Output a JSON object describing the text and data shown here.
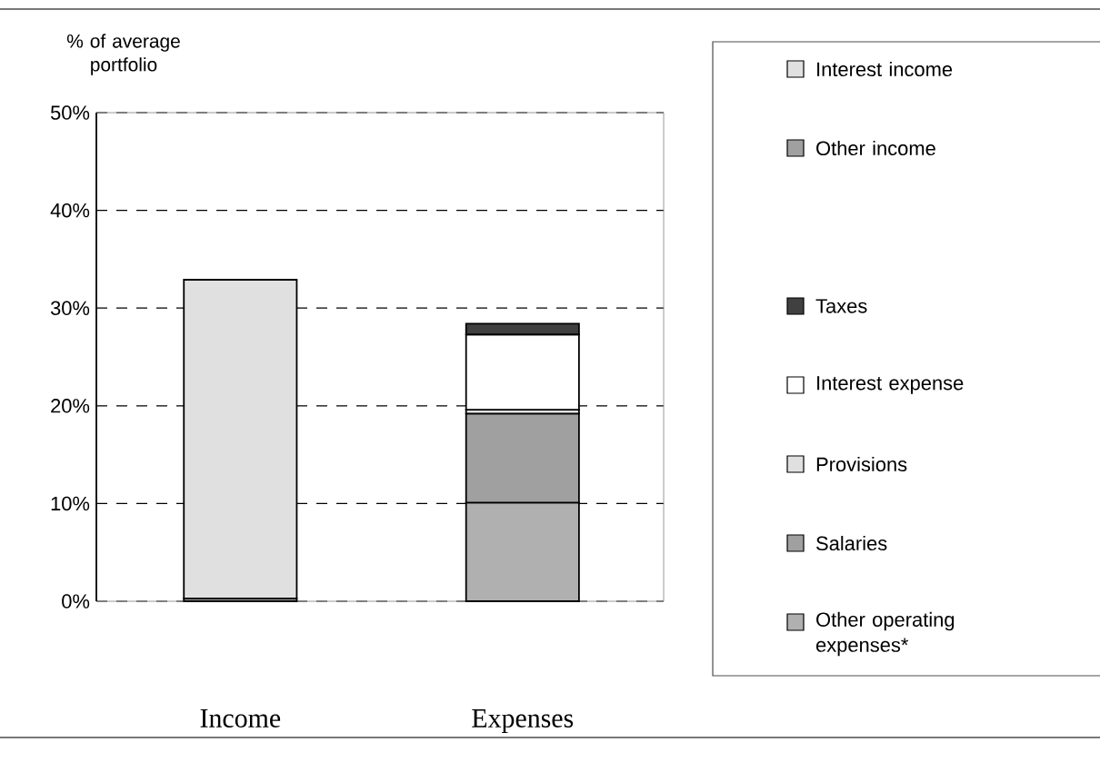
{
  "chart_data": {
    "type": "bar",
    "stacked": true,
    "ylabel": "% of average portfolio",
    "categories": [
      "Income",
      "Expenses"
    ],
    "series": [
      {
        "name": "Other operating expenses*",
        "color": "#b0b0b0",
        "values": [
          null,
          10.1
        ]
      },
      {
        "name": "Salaries",
        "color": "#a0a0a0",
        "values": [
          null,
          9.1
        ]
      },
      {
        "name": "Provisions",
        "color": "#e0e0e0",
        "values": [
          null,
          0.4
        ]
      },
      {
        "name": "Interest expense",
        "color": "#ffffff",
        "values": [
          null,
          7.7
        ]
      },
      {
        "name": "Taxes",
        "color": "#404040",
        "values": [
          null,
          1.1
        ]
      },
      {
        "name": "Other income",
        "color": "#a0a0a0",
        "values": [
          0.3,
          null
        ]
      },
      {
        "name": "Interest income",
        "color": "#e0e0e0",
        "values": [
          32.6,
          null
        ]
      }
    ],
    "ylim": [
      0,
      50
    ],
    "yticks": [
      {
        "value": 0,
        "label": "0%"
      },
      {
        "value": 10,
        "label": "10%"
      },
      {
        "value": 20,
        "label": "20%"
      },
      {
        "value": 30,
        "label": "30%"
      },
      {
        "value": 40,
        "label": "40%"
      },
      {
        "value": 50,
        "label": "50%"
      }
    ],
    "grid": "y",
    "legend": "right"
  }
}
